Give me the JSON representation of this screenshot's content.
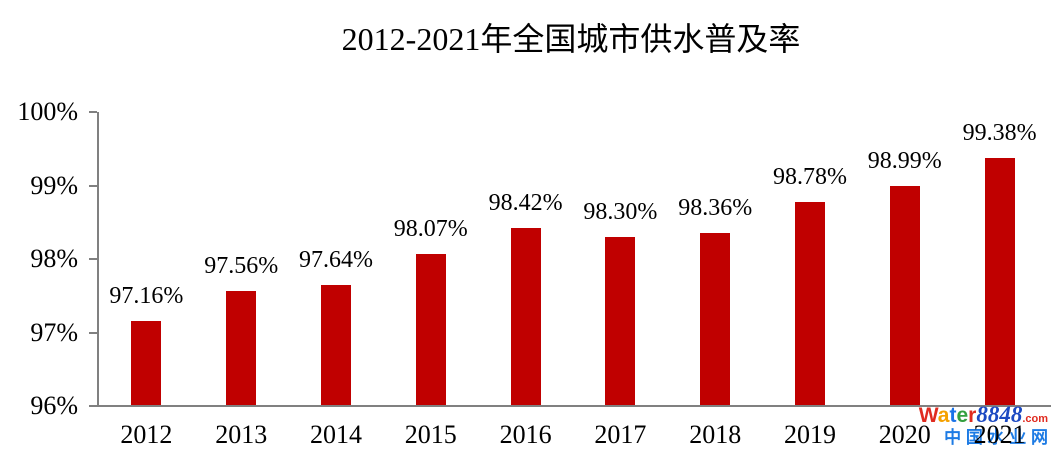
{
  "chart_data": {
    "type": "bar",
    "title": "2012-2021年全国城市供水普及率",
    "categories": [
      "2012",
      "2013",
      "2014",
      "2015",
      "2016",
      "2017",
      "2018",
      "2019",
      "2020",
      "2021"
    ],
    "values": [
      97.16,
      97.56,
      97.64,
      98.07,
      98.42,
      98.3,
      98.36,
      98.78,
      98.99,
      99.38
    ],
    "bar_labels": [
      "97.16%",
      "97.56%",
      "97.64%",
      "98.07%",
      "98.42%",
      "98.30%",
      "98.36%",
      "98.78%",
      "98.99%",
      "99.38%"
    ],
    "xlabel": "",
    "ylabel": "",
    "ylim": [
      96,
      100
    ],
    "ytick_values": [
      96,
      97,
      98,
      99,
      100
    ],
    "ytick_labels": [
      "96%",
      "97%",
      "98%",
      "99%",
      "100%"
    ],
    "grid": false,
    "legend": false,
    "bar_color": "#c00000",
    "axis_color": "#808080"
  },
  "watermark": {
    "brand_letters": [
      {
        "char": "W",
        "color": "#e02b20"
      },
      {
        "char": "a",
        "color": "#f5a100"
      },
      {
        "char": "t",
        "color": "#1a73e8"
      },
      {
        "char": "e",
        "color": "#35a03f"
      },
      {
        "char": "r",
        "color": "#e02b20"
      }
    ],
    "brand_digits": "8848",
    "brand_digits_color": "#1c49c2",
    "domain_suffix": ".com",
    "domain_suffix_color": "#e02b20",
    "tagline": "中 国 水 业 网",
    "tagline_color": "#1d7be4"
  }
}
